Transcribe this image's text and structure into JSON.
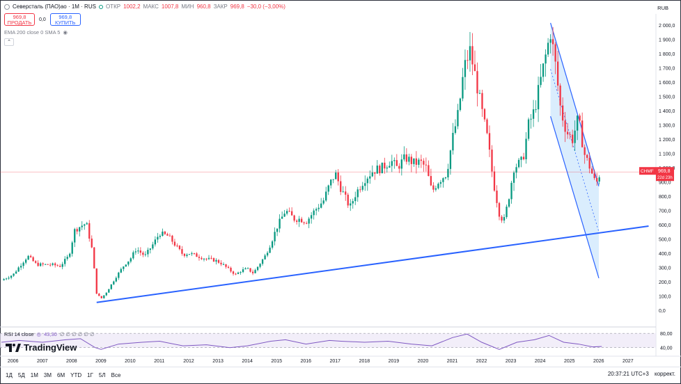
{
  "header": {
    "symbol_title": "Северсталь (ПАО)ао · 1М · RUS",
    "open_label": "ОТКР",
    "open_value": "1002,2",
    "high_label": "МАКС",
    "high_value": "1007,8",
    "low_label": "МИН",
    "low_value": "960,8",
    "close_label": "ЗАКР",
    "close_value": "969,8",
    "change_value": "−30,0 (−3,00%)",
    "currency": "RUB"
  },
  "trade": {
    "sell_price": "969,8",
    "sell_label": "ПРОДАТЬ",
    "spread": "0,0",
    "buy_price": "969,8",
    "buy_label": "КУПИТЬ"
  },
  "indicators": {
    "label": "EMA 200 close 0 SMA 5"
  },
  "rsi": {
    "label": "RSI 14 close",
    "value": "43,30",
    "extra": "∅ ∅ ∅ ∅ ∅ ∅",
    "levels": [
      "80,00",
      "40,00"
    ]
  },
  "branding": {
    "name": "TradingView"
  },
  "price_tag": {
    "symbol": "CHMF",
    "price": "969,8",
    "countdown": "22d 23h"
  },
  "timeframes": [
    "1Д",
    "5Д",
    "1М",
    "3М",
    "6М",
    "YTD",
    "1Г",
    "5Л",
    "Все"
  ],
  "status": {
    "clock": "20:37:21 UTC+3",
    "adjust": "коррект."
  },
  "colors": {
    "up": "#089981",
    "down": "#f23645",
    "trend": "#2962ff",
    "rsi": "#7e57c2",
    "channel_fill": "#bbdefb"
  },
  "chart_data": {
    "type": "candlestick",
    "timeframe": "1M",
    "ylim": [
      0,
      2000
    ],
    "y_ticks": [
      "2 000,0",
      "1 900,0",
      "1 800,0",
      "1 700,0",
      "1 600,0",
      "1 500,0",
      "1 400,0",
      "1 300,0",
      "1 200,0",
      "1 100,0",
      "1 000,0",
      "900,0",
      "800,0",
      "700,0",
      "600,0",
      "500,0",
      "400,0",
      "300,0",
      "200,0",
      "100,0",
      "0,0"
    ],
    "x_ticks": [
      "2006",
      "2007",
      "2008",
      "2009",
      "2010",
      "2011",
      "2012",
      "2013",
      "2014",
      "2015",
      "2016",
      "2017",
      "2018",
      "2019",
      "2020",
      "2021",
      "2022",
      "2023",
      "2024",
      "2025",
      "2026",
      "2027"
    ],
    "last_price": 969.8,
    "price_path": [
      [
        2005.6,
        210
      ],
      [
        2006.0,
        250
      ],
      [
        2006.3,
        330
      ],
      [
        2006.5,
        380
      ],
      [
        2006.8,
        320
      ],
      [
        2007.0,
        320
      ],
      [
        2007.3,
        320
      ],
      [
        2007.6,
        310
      ],
      [
        2007.9,
        380
      ],
      [
        2008.1,
        560
      ],
      [
        2008.3,
        590
      ],
      [
        2008.5,
        610
      ],
      [
        2008.7,
        420
      ],
      [
        2008.85,
        120
      ],
      [
        2009.0,
        80
      ],
      [
        2009.2,
        130
      ],
      [
        2009.5,
        230
      ],
      [
        2009.8,
        320
      ],
      [
        2010.0,
        360
      ],
      [
        2010.2,
        430
      ],
      [
        2010.5,
        380
      ],
      [
        2010.8,
        470
      ],
      [
        2011.0,
        540
      ],
      [
        2011.3,
        520
      ],
      [
        2011.6,
        440
      ],
      [
        2011.8,
        390
      ],
      [
        2012.0,
        400
      ],
      [
        2012.3,
        380
      ],
      [
        2012.6,
        360
      ],
      [
        2012.9,
        350
      ],
      [
        2013.1,
        330
      ],
      [
        2013.4,
        280
      ],
      [
        2013.6,
        250
      ],
      [
        2013.8,
        280
      ],
      [
        2014.0,
        290
      ],
      [
        2014.2,
        260
      ],
      [
        2014.4,
        320
      ],
      [
        2014.6,
        380
      ],
      [
        2014.8,
        470
      ],
      [
        2015.0,
        580
      ],
      [
        2015.3,
        700
      ],
      [
        2015.6,
        640
      ],
      [
        2015.8,
        640
      ],
      [
        2016.0,
        620
      ],
      [
        2016.3,
        700
      ],
      [
        2016.6,
        770
      ],
      [
        2016.8,
        880
      ],
      [
        2017.0,
        960
      ],
      [
        2017.2,
        850
      ],
      [
        2017.5,
        720
      ],
      [
        2017.7,
        820
      ],
      [
        2018.0,
        920
      ],
      [
        2018.3,
        980
      ],
      [
        2018.6,
        1000
      ],
      [
        2018.9,
        1050
      ],
      [
        2019.1,
        1000
      ],
      [
        2019.4,
        1070
      ],
      [
        2019.7,
        1030
      ],
      [
        2019.9,
        1040
      ],
      [
        2020.1,
        1000
      ],
      [
        2020.3,
        830
      ],
      [
        2020.5,
        900
      ],
      [
        2020.8,
        960
      ],
      [
        2021.0,
        1200
      ],
      [
        2021.2,
        1380
      ],
      [
        2021.4,
        1700
      ],
      [
        2021.6,
        1820
      ],
      [
        2021.8,
        1620
      ],
      [
        2022.0,
        1400
      ],
      [
        2022.2,
        1200
      ],
      [
        2022.4,
        900
      ],
      [
        2022.6,
        680
      ],
      [
        2022.75,
        620
      ],
      [
        2022.9,
        760
      ],
      [
        2023.1,
        1000
      ],
      [
        2023.4,
        1050
      ],
      [
        2023.6,
        1300
      ],
      [
        2023.8,
        1400
      ],
      [
        2024.0,
        1600
      ],
      [
        2024.2,
        1800
      ],
      [
        2024.35,
        1950
      ],
      [
        2024.5,
        1750
      ],
      [
        2024.7,
        1400
      ],
      [
        2024.9,
        1250
      ],
      [
        2025.1,
        1200
      ],
      [
        2025.3,
        1350
      ],
      [
        2025.5,
        1100
      ],
      [
        2025.7,
        1000
      ],
      [
        2025.9,
        880
      ],
      [
        2026.05,
        970
      ]
    ],
    "rsi_ylim": [
      20,
      90
    ],
    "rsi_path": [
      [
        2005.6,
        55
      ],
      [
        2006.2,
        60
      ],
      [
        2007.0,
        55
      ],
      [
        2007.8,
        62
      ],
      [
        2008.3,
        65
      ],
      [
        2008.8,
        40
      ],
      [
        2009.0,
        35
      ],
      [
        2009.6,
        50
      ],
      [
        2010.4,
        55
      ],
      [
        2011.0,
        58
      ],
      [
        2011.8,
        45
      ],
      [
        2012.6,
        48
      ],
      [
        2013.4,
        40
      ],
      [
        2014.0,
        45
      ],
      [
        2014.8,
        58
      ],
      [
        2015.3,
        62
      ],
      [
        2016.0,
        50
      ],
      [
        2016.8,
        60
      ],
      [
        2017.2,
        58
      ],
      [
        2018.0,
        55
      ],
      [
        2018.8,
        58
      ],
      [
        2019.6,
        50
      ],
      [
        2020.3,
        45
      ],
      [
        2021.0,
        68
      ],
      [
        2021.5,
        78
      ],
      [
        2022.0,
        55
      ],
      [
        2022.6,
        35
      ],
      [
        2023.2,
        55
      ],
      [
        2023.8,
        62
      ],
      [
        2024.3,
        74
      ],
      [
        2024.8,
        55
      ],
      [
        2025.3,
        50
      ],
      [
        2025.8,
        42
      ],
      [
        2026.1,
        43.3
      ]
    ],
    "trend_line": {
      "from": [
        2008.85,
        55
      ],
      "to": [
        2027.7,
        590
      ]
    },
    "channel": {
      "upper": [
        [
          2024.35,
          2015
        ],
        [
          2026.0,
          870
        ]
      ],
      "lower": [
        [
          2024.35,
          1360
        ],
        [
          2026.0,
          225
        ]
      ],
      "mid": [
        [
          2024.35,
          1690
        ],
        [
          2026.0,
          550
        ]
      ]
    }
  }
}
